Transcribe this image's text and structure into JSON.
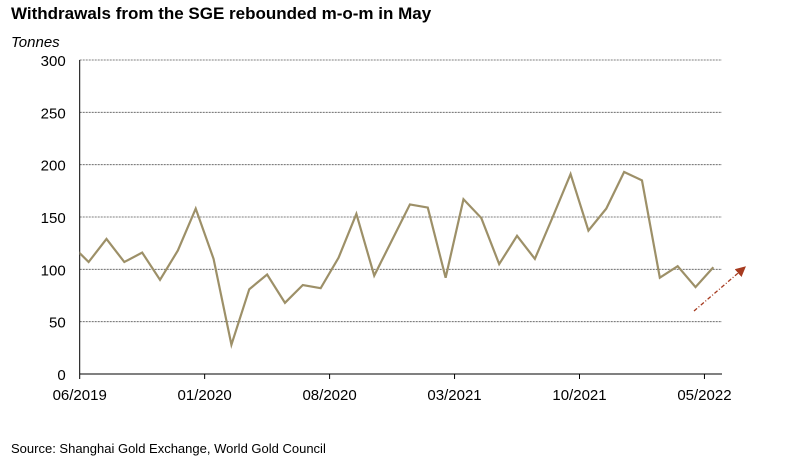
{
  "chart_data": {
    "type": "line",
    "title": "Withdrawals from the SGE rebounded m-o-m in May",
    "ylabel": "Tonnes",
    "xlabel": "",
    "ylim": [
      0,
      300
    ],
    "yticks": [
      0,
      50,
      100,
      150,
      200,
      250,
      300
    ],
    "grid": true,
    "x_tick_labels": [
      "06/2019",
      "01/2020",
      "08/2020",
      "03/2021",
      "10/2021",
      "05/2022"
    ],
    "x": [
      "05/2019",
      "06/2019",
      "07/2019",
      "08/2019",
      "09/2019",
      "10/2019",
      "11/2019",
      "12/2019",
      "01/2020",
      "02/2020",
      "03/2020",
      "04/2020",
      "05/2020",
      "06/2020",
      "07/2020",
      "08/2020",
      "09/2020",
      "10/2020",
      "11/2020",
      "12/2020",
      "01/2021",
      "02/2021",
      "03/2021",
      "04/2021",
      "05/2021",
      "06/2021",
      "07/2021",
      "08/2021",
      "09/2021",
      "10/2021",
      "11/2021",
      "12/2021",
      "01/2022",
      "02/2022",
      "03/2022",
      "04/2022",
      "05/2022"
    ],
    "series": [
      {
        "name": "SGE withdrawals",
        "color": "#9d9068",
        "values": [
          124,
          107,
          129,
          107,
          116,
          90,
          118,
          158,
          110,
          28,
          81,
          95,
          68,
          85,
          82,
          111,
          153,
          94,
          128,
          162,
          159,
          92,
          167,
          149,
          105,
          132,
          110,
          150,
          191,
          137,
          158,
          193,
          185,
          92,
          103,
          83,
          102
        ]
      }
    ],
    "annotations": [
      {
        "type": "arrow",
        "direction": "up",
        "color": "#a63a1f"
      }
    ],
    "source": "Source: Shanghai Gold Exchange, World Gold Council"
  }
}
